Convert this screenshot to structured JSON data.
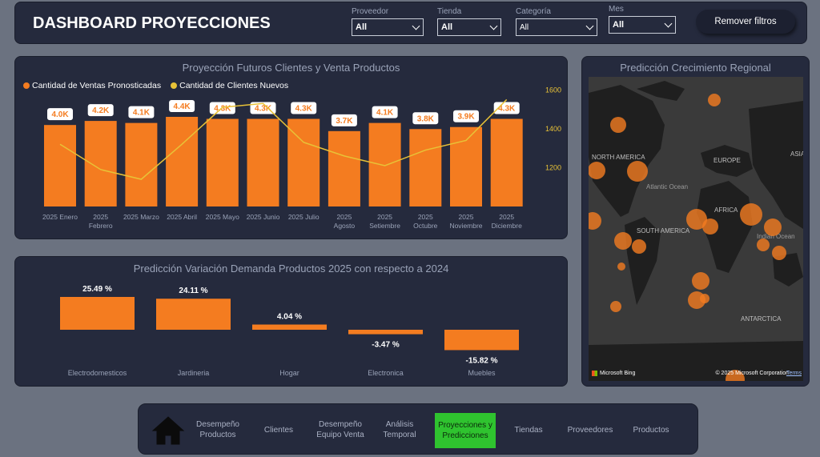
{
  "header": {
    "title": "DASHBOARD PROYECCIONES",
    "filters": [
      {
        "label": "Proveedor",
        "value": "All"
      },
      {
        "label": "Tienda",
        "value": "All"
      },
      {
        "label": "Categoría",
        "value": "All"
      },
      {
        "label": "Mes",
        "value": "All"
      }
    ],
    "remove_filters": "Remover filtros"
  },
  "projection": {
    "title": "Proyección Futuros Clientes y Venta Productos",
    "legend": [
      {
        "label": "Cantidad de Ventas Pronosticadas",
        "color": "#f47c20"
      },
      {
        "label": "Cantidad de Clientes Nuevos",
        "color": "#e8c237"
      }
    ]
  },
  "variation": {
    "title": "Predicción Variación Demanda Productos 2025 con respecto a 2024"
  },
  "map": {
    "title": "Predicción Crecimiento Regional",
    "labels": [
      "NORTH AMERICA",
      "EUROPE",
      "ASIA",
      "Atlantic Ocean",
      "AFRICA",
      "SOUTH AMERICA",
      "Indian Ocean",
      "ANTARCTICA"
    ],
    "attribution_left": "Microsoft Bing",
    "attribution_right": "© 2025 Microsoft Corporation",
    "terms": "Terms"
  },
  "nav": {
    "items": [
      {
        "label": "Desempeño Productos",
        "active": false
      },
      {
        "label": "Clientes",
        "active": false
      },
      {
        "label": "Desempeño Equipo Venta",
        "active": false
      },
      {
        "label": "Análisis Temporal",
        "active": false
      },
      {
        "label": "Proyecciones y Predicciones",
        "active": true
      },
      {
        "label": "Tiendas",
        "active": false
      },
      {
        "label": "Proveedores",
        "active": false
      },
      {
        "label": "Productos",
        "active": false
      }
    ]
  },
  "chart_data": [
    {
      "type": "bar",
      "title": "Proyección Futuros Clientes y Venta Productos",
      "categories": [
        "2025 Enero",
        "2025 Febrero",
        "2025 Marzo",
        "2025 Abril",
        "2025 Mayo",
        "2025 Junio",
        "2025 Julio",
        "2025 Agosto",
        "2025 Setiembre",
        "2025 Octubre",
        "2025 Noviembre",
        "2025 Diciembre"
      ],
      "series": [
        {
          "name": "Cantidad de Ventas Pronosticadas",
          "values": [
            4000,
            4200,
            4100,
            4400,
            4300,
            4300,
            4300,
            3700,
            4100,
            3800,
            3900,
            4300
          ],
          "labels": [
            "4.0K",
            "4.2K",
            "4.1K",
            "4.4K",
            "4.3K",
            "4.3K",
            "4.3K",
            "3.7K",
            "4.1K",
            "3.8K",
            "3.9K",
            "4.3K"
          ],
          "color": "#f47c20"
        },
        {
          "name": "Cantidad de Clientes Nuevos",
          "type": "line",
          "values": [
            1320,
            1190,
            1140,
            1320,
            1510,
            1530,
            1330,
            1260,
            1210,
            1290,
            1340,
            1550
          ],
          "color": "#e8c237"
        }
      ],
      "y2_ticks": [
        "1600",
        "1400",
        "1200"
      ],
      "y2lim": [
        1000,
        1700
      ]
    },
    {
      "type": "bar",
      "title": "Predicción Variación Demanda Productos 2025 con respecto a 2024",
      "categories": [
        "Electrodomesticos",
        "Jardineria",
        "Hogar",
        "Electronica",
        "Muebles"
      ],
      "values": [
        25.49,
        24.11,
        4.04,
        -3.47,
        -15.82
      ],
      "labels": [
        "25.49 %",
        "24.11 %",
        "4.04 %",
        "-3.47 %",
        "-15.82 %"
      ],
      "color": "#f47c20"
    }
  ]
}
